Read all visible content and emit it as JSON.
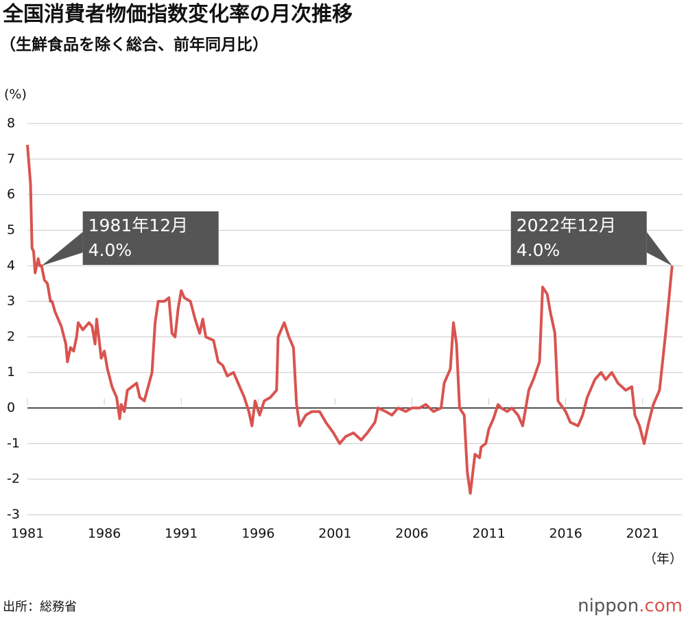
{
  "chart_data": {
    "type": "line",
    "title": "全国消費者物価指数変化率の月次推移",
    "subtitle": "（生鮮食品を除く総合、前年同月比）",
    "y_unit": "(%)",
    "x_unit": "（年）",
    "source": "出所：総務省",
    "logo": "nippon",
    "logo_suffix": ".com",
    "xlim": [
      1981,
      2023.6
    ],
    "xticks": [
      1981,
      1986,
      1991,
      1996,
      2001,
      2006,
      2011,
      2016,
      2021
    ],
    "ylim": [
      -3,
      8
    ],
    "yticks": [
      -3,
      -2,
      -1,
      0,
      1,
      2,
      3,
      4,
      5,
      6,
      7,
      8
    ],
    "grid": true,
    "series": [
      {
        "color": "#d9534f",
        "x": [
          1981.0,
          1981.2,
          1981.3,
          1981.4,
          1981.5,
          1981.7,
          1981.8,
          1981.92,
          1982.1,
          1982.3,
          1982.5,
          1982.6,
          1982.8,
          1983.0,
          1983.2,
          1983.5,
          1983.6,
          1983.8,
          1984.0,
          1984.2,
          1984.3,
          1984.6,
          1984.8,
          1985.0,
          1985.2,
          1985.4,
          1985.5,
          1985.8,
          1986.0,
          1986.2,
          1986.5,
          1986.8,
          1987.0,
          1987.1,
          1987.3,
          1987.5,
          1987.8,
          1988.1,
          1988.3,
          1988.6,
          1989.1,
          1989.3,
          1989.5,
          1989.9,
          1990.2,
          1990.4,
          1990.6,
          1990.8,
          1991.0,
          1991.2,
          1991.6,
          1991.9,
          1992.2,
          1992.4,
          1992.6,
          1993.1,
          1993.4,
          1993.7,
          1994.0,
          1994.4,
          1994.8,
          1995.1,
          1995.4,
          1995.6,
          1995.8,
          1996.1,
          1996.4,
          1996.8,
          1997.2,
          1997.3,
          1997.7,
          1998.0,
          1998.3,
          1998.5,
          1998.7,
          1999.1,
          1999.5,
          2000.0,
          2000.4,
          2000.9,
          2001.3,
          2001.7,
          2002.2,
          2002.7,
          2003.1,
          2003.6,
          2003.8,
          2004.3,
          2004.7,
          2005.1,
          2005.6,
          2006.0,
          2006.5,
          2006.9,
          2007.4,
          2007.9,
          2008.1,
          2008.5,
          2008.7,
          2008.9,
          2009.1,
          2009.4,
          2009.6,
          2009.8,
          2010.1,
          2010.4,
          2010.5,
          2010.8,
          2011.0,
          2011.3,
          2011.6,
          2011.8,
          2012.2,
          2012.5,
          2012.9,
          2013.2,
          2013.6,
          2013.9,
          2014.3,
          2014.5,
          2014.8,
          2015.0,
          2015.3,
          2015.5,
          2016.0,
          2016.3,
          2016.8,
          2017.1,
          2017.4,
          2017.9,
          2018.3,
          2018.6,
          2019.0,
          2019.4,
          2019.9,
          2020.3,
          2020.5,
          2020.8,
          2021.1,
          2021.4,
          2021.7,
          2022.1,
          2022.5,
          2022.7,
          2022.85,
          2022.92
        ],
        "values": [
          7.4,
          6.3,
          4.5,
          4.4,
          3.8,
          4.2,
          4.0,
          4.0,
          3.6,
          3.5,
          3.0,
          3.0,
          2.7,
          2.5,
          2.3,
          1.8,
          1.3,
          1.7,
          1.6,
          2.0,
          2.4,
          2.2,
          2.3,
          2.4,
          2.3,
          1.8,
          2.5,
          1.4,
          1.6,
          1.1,
          0.6,
          0.3,
          -0.3,
          0.1,
          -0.1,
          0.5,
          0.6,
          0.7,
          0.3,
          0.2,
          1.0,
          2.4,
          3.0,
          3.0,
          3.1,
          2.1,
          2.0,
          2.8,
          3.3,
          3.1,
          3.0,
          2.5,
          2.1,
          2.5,
          2.0,
          1.9,
          1.3,
          1.2,
          0.9,
          1.0,
          0.6,
          0.3,
          -0.1,
          -0.5,
          0.2,
          -0.2,
          0.2,
          0.3,
          0.5,
          2.0,
          2.4,
          2.0,
          1.7,
          0.1,
          -0.5,
          -0.2,
          -0.1,
          -0.1,
          -0.4,
          -0.7,
          -1.0,
          -0.8,
          -0.7,
          -0.9,
          -0.7,
          -0.4,
          0,
          -0.1,
          -0.2,
          0,
          -0.1,
          0,
          0,
          0.1,
          -0.1,
          0,
          0.7,
          1.1,
          2.4,
          1.8,
          0,
          -0.2,
          -1.8,
          -2.4,
          -1.3,
          -1.4,
          -1.1,
          -1.0,
          -0.6,
          -0.3,
          0.1,
          0,
          -0.1,
          0,
          -0.2,
          -0.5,
          0.5,
          0.8,
          1.3,
          3.4,
          3.2,
          2.7,
          2.1,
          0.2,
          -0.1,
          -0.4,
          -0.5,
          -0.2,
          0.3,
          0.8,
          1.0,
          0.8,
          1.0,
          0.7,
          0.5,
          0.6,
          -0.2,
          -0.5,
          -1.0,
          -0.4,
          0.1,
          0.5,
          2.1,
          3.0,
          3.7,
          4.0
        ]
      }
    ],
    "annotations": [
      {
        "text": "1981年12月",
        "value_label": "4.0%",
        "x": 1981.92,
        "value": 4
      },
      {
        "text": "2022年12月",
        "value_label": "4.0%",
        "x": 2022.92,
        "value": 4
      }
    ]
  }
}
